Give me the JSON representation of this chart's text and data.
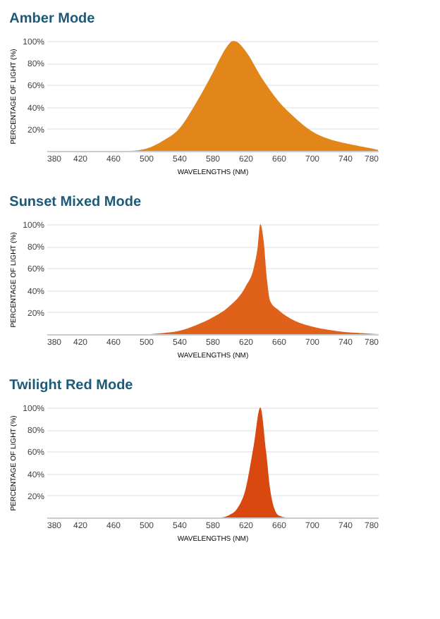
{
  "chart_data": [
    {
      "type": "area",
      "title": "Amber Mode",
      "xlabel": "WAVELENGTHS (NM)",
      "ylabel": "PERCENTAGE OF LIGHT (%)",
      "xlim": [
        380,
        780
      ],
      "xticks": [
        380,
        420,
        460,
        500,
        540,
        580,
        620,
        660,
        700,
        740,
        780
      ],
      "ylim": [
        0,
        100
      ],
      "yticks": [
        {
          "value": 20,
          "label": "20%"
        },
        {
          "value": 40,
          "label": "40%"
        },
        {
          "value": 60,
          "label": "60%"
        },
        {
          "value": 80,
          "label": "80%"
        },
        {
          "value": 100,
          "label": "100%"
        }
      ],
      "grid": "y",
      "series": [
        {
          "color": "#e2861a",
          "x": [
            480,
            500,
            520,
            540,
            560,
            580,
            590,
            600,
            605,
            610,
            620,
            640,
            660,
            680,
            700,
            720,
            740,
            760,
            780
          ],
          "values": [
            0,
            2,
            9,
            20,
            43,
            70,
            85,
            97,
            100,
            99,
            91,
            66,
            45,
            30,
            18,
            11,
            7,
            4,
            1
          ]
        }
      ]
    },
    {
      "type": "area",
      "title": "Sunset Mixed Mode",
      "xlabel": "WAVELENGTHS (NM)",
      "ylabel": "PERCENTAGE OF LIGHT (%)",
      "xlim": [
        380,
        780
      ],
      "xticks": [
        380,
        420,
        460,
        500,
        540,
        580,
        620,
        660,
        700,
        740,
        780
      ],
      "ylim": [
        0,
        100
      ],
      "yticks": [
        {
          "value": 20,
          "label": "20%"
        },
        {
          "value": 40,
          "label": "40%"
        },
        {
          "value": 60,
          "label": "60%"
        },
        {
          "value": 80,
          "label": "80%"
        },
        {
          "value": 100,
          "label": "100%"
        }
      ],
      "grid": "y",
      "series": [
        {
          "color": "#e0621a",
          "x": [
            480,
            500,
            520,
            540,
            560,
            580,
            600,
            620,
            630,
            635,
            638,
            642,
            646,
            650,
            660,
            680,
            700,
            720,
            740,
            760,
            780
          ],
          "values": [
            0,
            0,
            1,
            3,
            8,
            15,
            25,
            43,
            60,
            80,
            100,
            85,
            50,
            30,
            22,
            12,
            7,
            4,
            2,
            1,
            0
          ]
        }
      ]
    },
    {
      "type": "area",
      "title": "Twilight Red Mode",
      "xlabel": "WAVELENGTHS (NM)",
      "ylabel": "PERCENTAGE OF LIGHT (%)",
      "xlim": [
        380,
        780
      ],
      "xticks": [
        380,
        420,
        460,
        500,
        540,
        580,
        620,
        660,
        700,
        740,
        780
      ],
      "ylim": [
        0,
        100
      ],
      "yticks": [
        {
          "value": 20,
          "label": "20%"
        },
        {
          "value": 40,
          "label": "40%"
        },
        {
          "value": 60,
          "label": "60%"
        },
        {
          "value": 80,
          "label": "80%"
        },
        {
          "value": 100,
          "label": "100%"
        }
      ],
      "grid": "y",
      "series": [
        {
          "color": "#d9480f",
          "x": [
            590,
            600,
            610,
            620,
            630,
            638,
            645,
            650,
            655,
            660,
            670
          ],
          "values": [
            0,
            2,
            8,
            25,
            65,
            100,
            60,
            25,
            8,
            2,
            0
          ]
        }
      ]
    }
  ]
}
